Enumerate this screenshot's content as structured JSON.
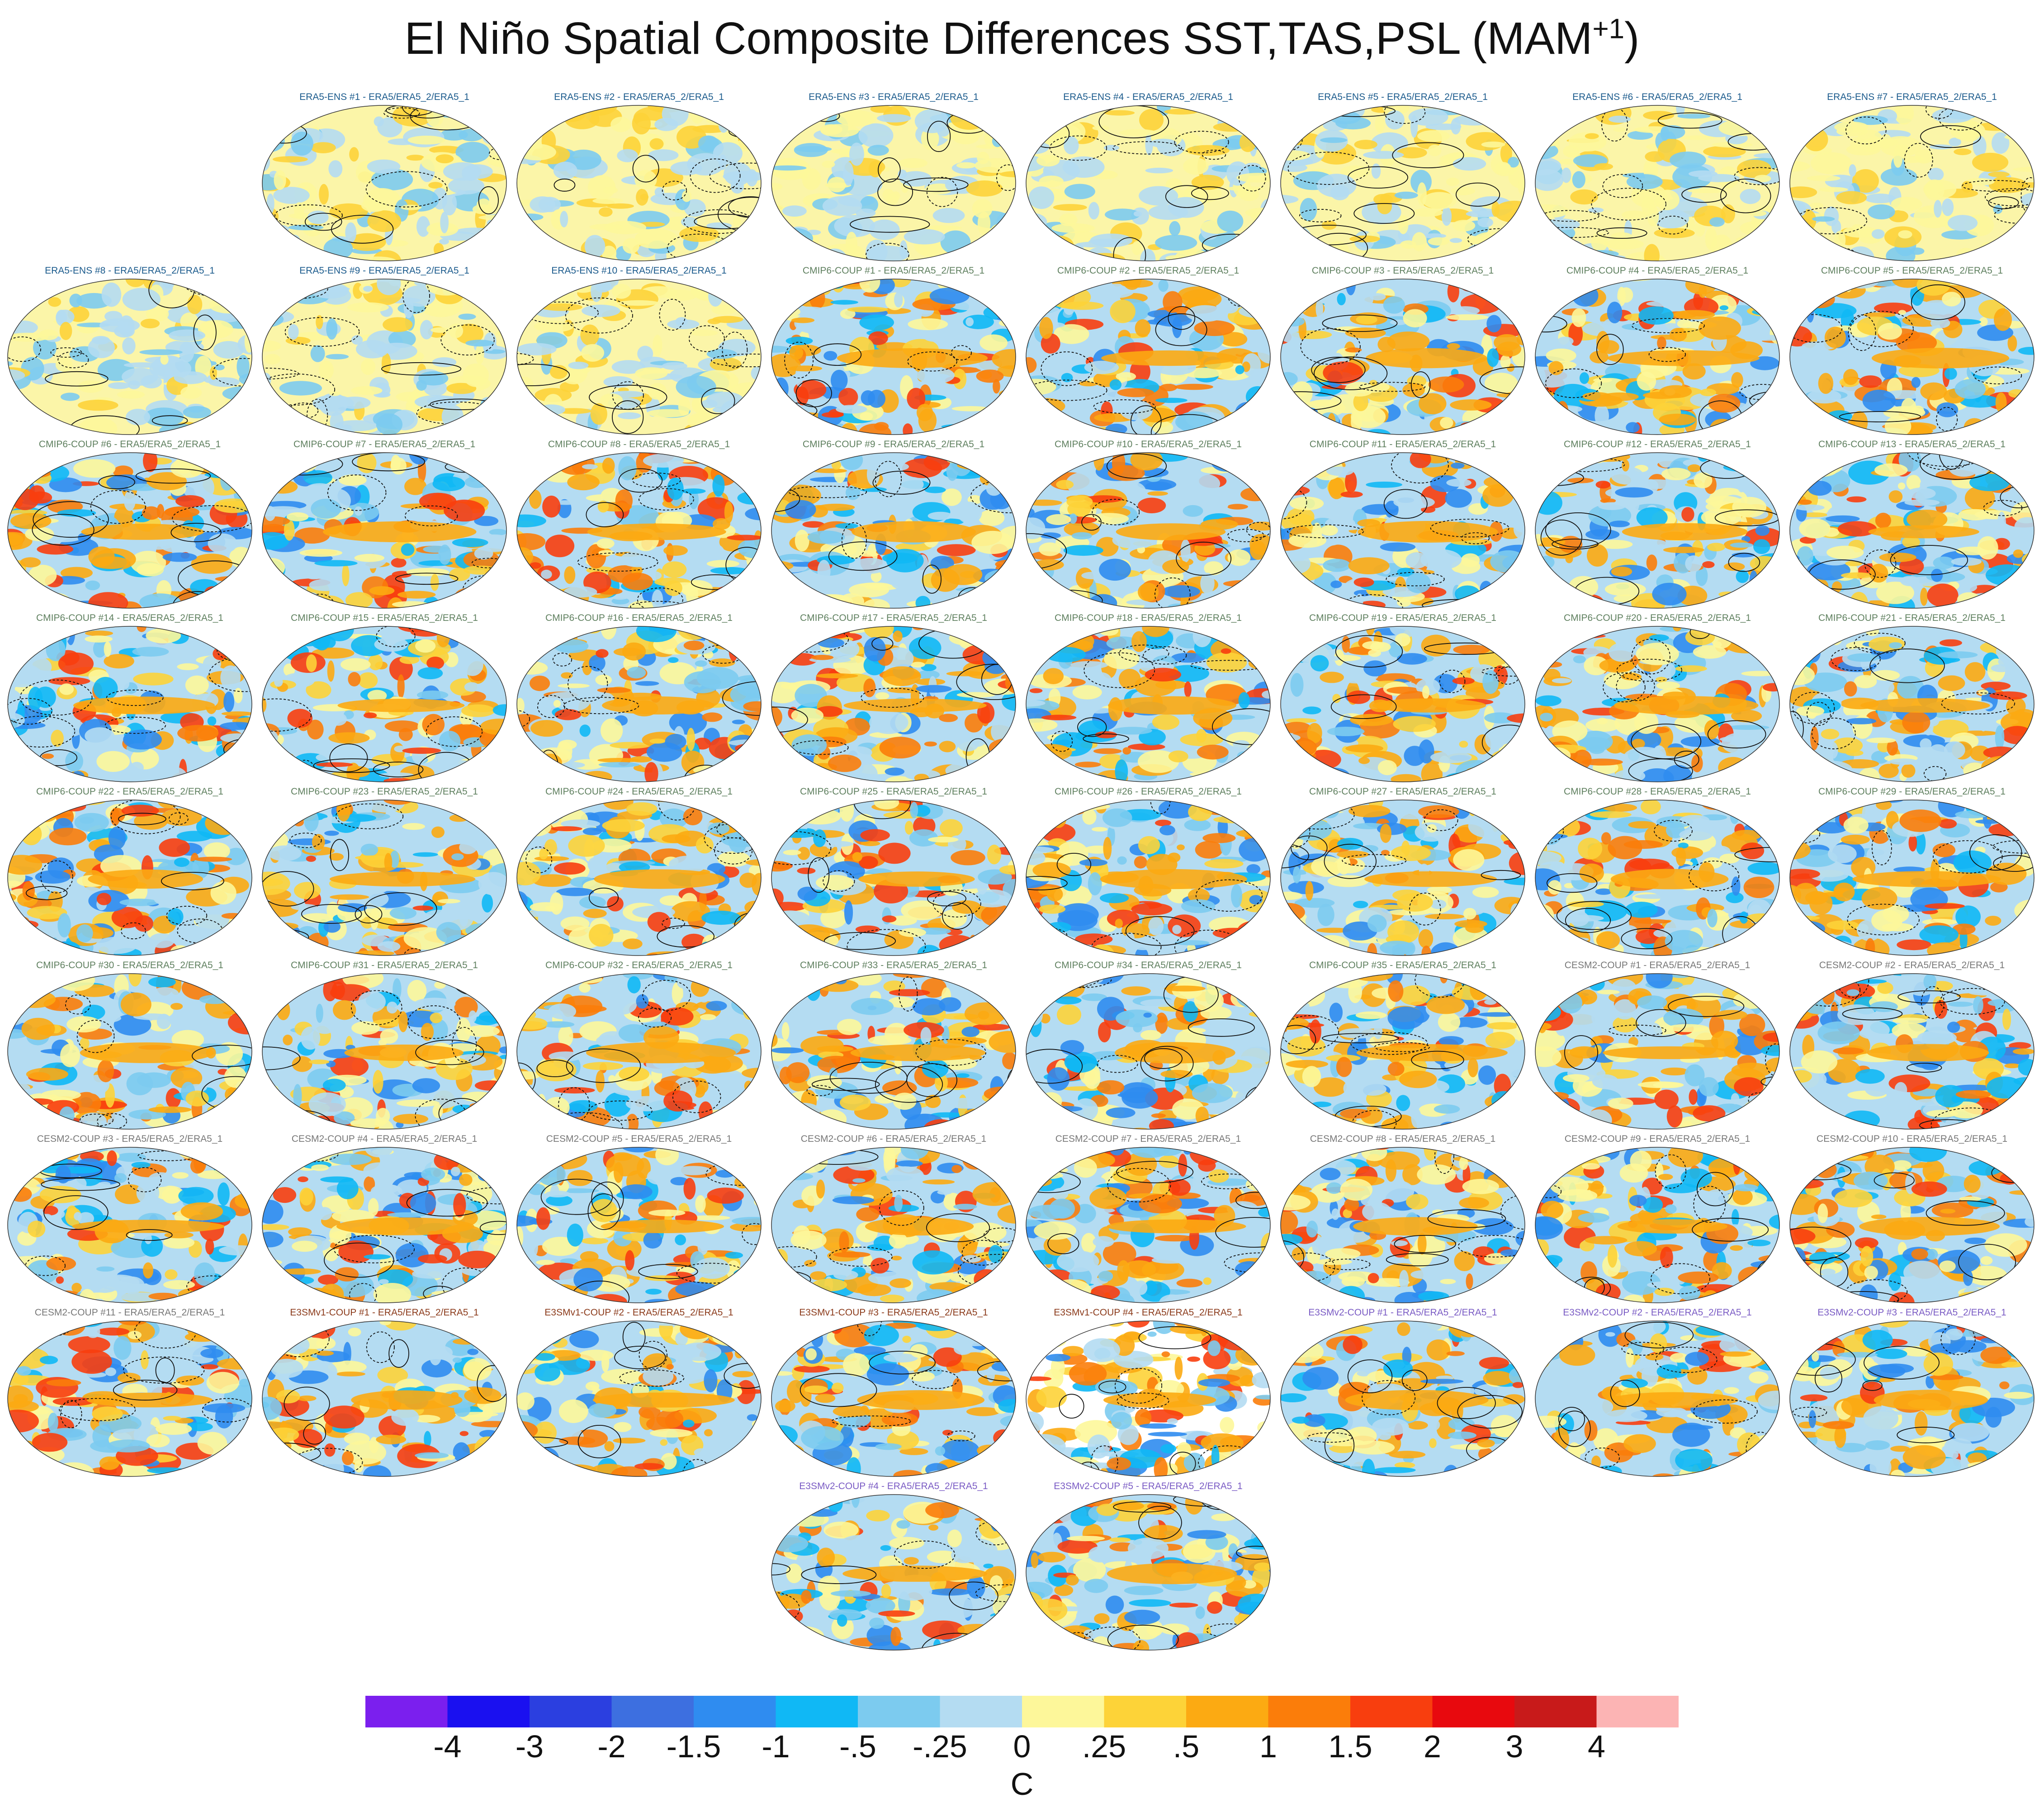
{
  "title": {
    "main": "El Niño Spatial Composite Differences SST,TAS,PSL (MAM",
    "superscript": "+1",
    "close": ")"
  },
  "group_colors": {
    "ERA5-ENS": "#1a5a8c",
    "CMIP6-COUP": "#5e7f5e",
    "CESM2-COUP": "#777777",
    "E3SMv1-COUP": "#8b3a1a",
    "E3SMv2-COUP": "#7a5bc4"
  },
  "panels": [
    {
      "label": "ERA5-ENS    #1 - ERA5/ERA5_2/ERA5_1",
      "group": "ERA5-ENS"
    },
    {
      "label": "ERA5-ENS    #2 - ERA5/ERA5_2/ERA5_1",
      "group": "ERA5-ENS"
    },
    {
      "label": "ERA5-ENS    #3 - ERA5/ERA5_2/ERA5_1",
      "group": "ERA5-ENS"
    },
    {
      "label": "ERA5-ENS    #4 - ERA5/ERA5_2/ERA5_1",
      "group": "ERA5-ENS"
    },
    {
      "label": "ERA5-ENS    #5 - ERA5/ERA5_2/ERA5_1",
      "group": "ERA5-ENS"
    },
    {
      "label": "ERA5-ENS    #6 - ERA5/ERA5_2/ERA5_1",
      "group": "ERA5-ENS"
    },
    {
      "label": "ERA5-ENS    #7 - ERA5/ERA5_2/ERA5_1",
      "group": "ERA5-ENS"
    },
    {
      "label": "ERA5-ENS    #8 - ERA5/ERA5_2/ERA5_1",
      "group": "ERA5-ENS"
    },
    {
      "label": "ERA5-ENS    #9 - ERA5/ERA5_2/ERA5_1",
      "group": "ERA5-ENS"
    },
    {
      "label": "ERA5-ENS    #10 - ERA5/ERA5_2/ERA5_1",
      "group": "ERA5-ENS"
    },
    {
      "label": "CMIP6-COUP  #1 - ERA5/ERA5_2/ERA5_1",
      "group": "CMIP6-COUP"
    },
    {
      "label": "CMIP6-COUP  #2 - ERA5/ERA5_2/ERA5_1",
      "group": "CMIP6-COUP"
    },
    {
      "label": "CMIP6-COUP  #3 - ERA5/ERA5_2/ERA5_1",
      "group": "CMIP6-COUP"
    },
    {
      "label": "CMIP6-COUP  #4 - ERA5/ERA5_2/ERA5_1",
      "group": "CMIP6-COUP"
    },
    {
      "label": "CMIP6-COUP  #5 - ERA5/ERA5_2/ERA5_1",
      "group": "CMIP6-COUP"
    },
    {
      "label": "CMIP6-COUP  #6 - ERA5/ERA5_2/ERA5_1",
      "group": "CMIP6-COUP"
    },
    {
      "label": "CMIP6-COUP  #7 - ERA5/ERA5_2/ERA5_1",
      "group": "CMIP6-COUP"
    },
    {
      "label": "CMIP6-COUP  #8 - ERA5/ERA5_2/ERA5_1",
      "group": "CMIP6-COUP"
    },
    {
      "label": "CMIP6-COUP  #9 - ERA5/ERA5_2/ERA5_1",
      "group": "CMIP6-COUP"
    },
    {
      "label": "CMIP6-COUP  #10 - ERA5/ERA5_2/ERA5_1",
      "group": "CMIP6-COUP"
    },
    {
      "label": "CMIP6-COUP  #11 - ERA5/ERA5_2/ERA5_1",
      "group": "CMIP6-COUP"
    },
    {
      "label": "CMIP6-COUP  #12 - ERA5/ERA5_2/ERA5_1",
      "group": "CMIP6-COUP"
    },
    {
      "label": "CMIP6-COUP  #13 - ERA5/ERA5_2/ERA5_1",
      "group": "CMIP6-COUP"
    },
    {
      "label": "CMIP6-COUP  #14 - ERA5/ERA5_2/ERA5_1",
      "group": "CMIP6-COUP"
    },
    {
      "label": "CMIP6-COUP  #15 - ERA5/ERA5_2/ERA5_1",
      "group": "CMIP6-COUP"
    },
    {
      "label": "CMIP6-COUP  #16 - ERA5/ERA5_2/ERA5_1",
      "group": "CMIP6-COUP"
    },
    {
      "label": "CMIP6-COUP  #17 - ERA5/ERA5_2/ERA5_1",
      "group": "CMIP6-COUP"
    },
    {
      "label": "CMIP6-COUP  #18 - ERA5/ERA5_2/ERA5_1",
      "group": "CMIP6-COUP"
    },
    {
      "label": "CMIP6-COUP  #19 - ERA5/ERA5_2/ERA5_1",
      "group": "CMIP6-COUP"
    },
    {
      "label": "CMIP6-COUP  #20 - ERA5/ERA5_2/ERA5_1",
      "group": "CMIP6-COUP"
    },
    {
      "label": "CMIP6-COUP  #21 - ERA5/ERA5_2/ERA5_1",
      "group": "CMIP6-COUP"
    },
    {
      "label": "CMIP6-COUP  #22 - ERA5/ERA5_2/ERA5_1",
      "group": "CMIP6-COUP"
    },
    {
      "label": "CMIP6-COUP  #23 - ERA5/ERA5_2/ERA5_1",
      "group": "CMIP6-COUP"
    },
    {
      "label": "CMIP6-COUP  #24 - ERA5/ERA5_2/ERA5_1",
      "group": "CMIP6-COUP"
    },
    {
      "label": "CMIP6-COUP  #25 - ERA5/ERA5_2/ERA5_1",
      "group": "CMIP6-COUP"
    },
    {
      "label": "CMIP6-COUP  #26 - ERA5/ERA5_2/ERA5_1",
      "group": "CMIP6-COUP"
    },
    {
      "label": "CMIP6-COUP  #27 - ERA5/ERA5_2/ERA5_1",
      "group": "CMIP6-COUP"
    },
    {
      "label": "CMIP6-COUP  #28 - ERA5/ERA5_2/ERA5_1",
      "group": "CMIP6-COUP"
    },
    {
      "label": "CMIP6-COUP  #29 - ERA5/ERA5_2/ERA5_1",
      "group": "CMIP6-COUP"
    },
    {
      "label": "CMIP6-COUP  #30 - ERA5/ERA5_2/ERA5_1",
      "group": "CMIP6-COUP"
    },
    {
      "label": "CMIP6-COUP  #31 - ERA5/ERA5_2/ERA5_1",
      "group": "CMIP6-COUP"
    },
    {
      "label": "CMIP6-COUP  #32 - ERA5/ERA5_2/ERA5_1",
      "group": "CMIP6-COUP"
    },
    {
      "label": "CMIP6-COUP  #33 - ERA5/ERA5_2/ERA5_1",
      "group": "CMIP6-COUP"
    },
    {
      "label": "CMIP6-COUP  #34 - ERA5/ERA5_2/ERA5_1",
      "group": "CMIP6-COUP"
    },
    {
      "label": "CMIP6-COUP  #35 - ERA5/ERA5_2/ERA5_1",
      "group": "CMIP6-COUP"
    },
    {
      "label": "CESM2-COUP  #1 - ERA5/ERA5_2/ERA5_1",
      "group": "CESM2-COUP"
    },
    {
      "label": "CESM2-COUP  #2 - ERA5/ERA5_2/ERA5_1",
      "group": "CESM2-COUP"
    },
    {
      "label": "CESM2-COUP  #3 - ERA5/ERA5_2/ERA5_1",
      "group": "CESM2-COUP"
    },
    {
      "label": "CESM2-COUP  #4 - ERA5/ERA5_2/ERA5_1",
      "group": "CESM2-COUP"
    },
    {
      "label": "CESM2-COUP  #5 - ERA5/ERA5_2/ERA5_1",
      "group": "CESM2-COUP"
    },
    {
      "label": "CESM2-COUP  #6 - ERA5/ERA5_2/ERA5_1",
      "group": "CESM2-COUP"
    },
    {
      "label": "CESM2-COUP  #7 - ERA5/ERA5_2/ERA5_1",
      "group": "CESM2-COUP"
    },
    {
      "label": "CESM2-COUP  #8 - ERA5/ERA5_2/ERA5_1",
      "group": "CESM2-COUP"
    },
    {
      "label": "CESM2-COUP  #9 - ERA5/ERA5_2/ERA5_1",
      "group": "CESM2-COUP"
    },
    {
      "label": "CESM2-COUP  #10 - ERA5/ERA5_2/ERA5_1",
      "group": "CESM2-COUP"
    },
    {
      "label": "CESM2-COUP  #11 - ERA5/ERA5_2/ERA5_1",
      "group": "CESM2-COUP"
    },
    {
      "label": "E3SMv1-COUP  #1 - ERA5/ERA5_2/ERA5_1",
      "group": "E3SMv1-COUP"
    },
    {
      "label": "E3SMv1-COUP  #2 - ERA5/ERA5_2/ERA5_1",
      "group": "E3SMv1-COUP"
    },
    {
      "label": "E3SMv1-COUP  #3 - ERA5/ERA5_2/ERA5_1",
      "group": "E3SMv1-COUP"
    },
    {
      "label": "E3SMv1-COUP  #4 - ERA5/ERA5_2/ERA5_1",
      "group": "E3SMv1-COUP"
    },
    {
      "label": "E3SMv2-COUP  #1 - ERA5/ERA5_2/ERA5_1",
      "group": "E3SMv2-COUP"
    },
    {
      "label": "E3SMv2-COUP  #2 - ERA5/ERA5_2/ERA5_1",
      "group": "E3SMv2-COUP"
    },
    {
      "label": "E3SMv2-COUP  #3 - ERA5/ERA5_2/ERA5_1",
      "group": "E3SMv2-COUP"
    },
    {
      "label": "E3SMv2-COUP  #4 - ERA5/ERA5_2/ERA5_1",
      "group": "E3SMv2-COUP"
    },
    {
      "label": "E3SMv2-COUP  #5 - ERA5/ERA5_2/ERA5_1",
      "group": "E3SMv2-COUP"
    }
  ],
  "colorbar": {
    "colors": [
      "#7b1fee",
      "#1a10f0",
      "#2b3fe0",
      "#3d6fe0",
      "#2f8cf0",
      "#10b8f5",
      "#7ccbef",
      "#b4dcf2",
      "#fdf79a",
      "#fdd338",
      "#fcaa12",
      "#fb7d0a",
      "#f83e0e",
      "#e8090e",
      "#c81a1a",
      "#fcb4b4"
    ],
    "labels": [
      "-4",
      "-3",
      "-2",
      "-1.5",
      "-1",
      "-.5",
      "-.25",
      "0",
      ".25",
      ".5",
      "1",
      "1.5",
      "2",
      "3",
      "4"
    ],
    "units": "C"
  }
}
